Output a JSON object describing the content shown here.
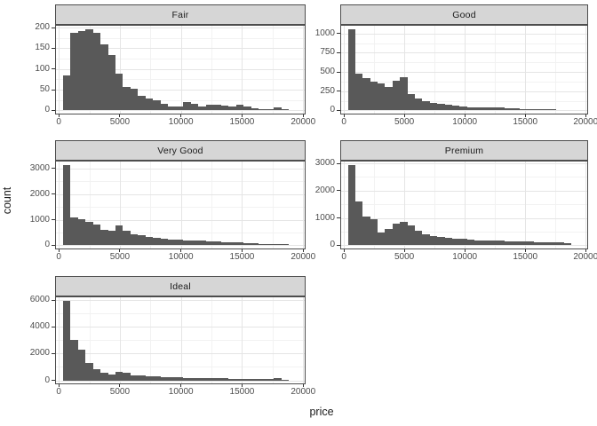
{
  "figure": {
    "background": "#ffffff"
  },
  "titles": {
    "x": "price",
    "y": "count"
  },
  "chart_data": {
    "type": "bar",
    "subtype": "faceted-histogram",
    "title": "",
    "xlabel": "price",
    "ylabel": "count",
    "legend": "none",
    "grid": "on",
    "facet_order": [
      "Fair",
      "Good",
      "Very Good",
      "Premium",
      "Ideal"
    ],
    "x_axis": {
      "ticks": [
        0,
        5000,
        10000,
        15000,
        20000
      ],
      "minor_ticks": [
        2500,
        7500,
        12500,
        17500
      ],
      "domain": [
        -300,
        20200
      ],
      "bin_start": 326,
      "bin_width": 616.6
    },
    "style": {
      "bar_color": "#595959",
      "strip_bg": "#d6d6d6",
      "border_color": "#4d4d4d",
      "grid_major": "#e5e5e5",
      "grid_minor": "#f2f2f2",
      "tick_label_color": "#4d4d4d",
      "title_color": "#1a1a1a"
    },
    "facets": [
      {
        "label": "Fair",
        "y_ticks": [
          0,
          50,
          100,
          150,
          200
        ],
        "values": [
          84,
          187,
          192,
          197,
          187,
          160,
          133,
          89,
          57,
          52,
          36,
          29,
          24,
          16,
          10,
          9,
          20,
          15,
          9,
          13,
          13,
          11,
          9,
          13,
          9,
          5,
          3,
          2,
          8,
          4
        ]
      },
      {
        "label": "Good",
        "y_ticks": [
          0,
          250,
          500,
          750,
          1000
        ],
        "values": [
          1060,
          480,
          420,
          375,
          355,
          300,
          390,
          435,
          210,
          160,
          125,
          100,
          80,
          70,
          60,
          50,
          45,
          40,
          35,
          38,
          35,
          30,
          25,
          22,
          20,
          18,
          15,
          12,
          10,
          8
        ]
      },
      {
        "label": "Very Good",
        "y_ticks": [
          0,
          1000,
          2000,
          3000
        ],
        "values": [
          3150,
          1080,
          1010,
          930,
          820,
          620,
          580,
          780,
          560,
          420,
          380,
          330,
          290,
          250,
          230,
          210,
          200,
          195,
          180,
          165,
          150,
          135,
          120,
          105,
          95,
          80,
          65,
          55,
          45,
          35
        ]
      },
      {
        "label": "Premium",
        "y_ticks": [
          0,
          1000,
          2000,
          3000
        ],
        "values": [
          2950,
          1620,
          1050,
          960,
          470,
          610,
          800,
          860,
          720,
          530,
          420,
          330,
          310,
          280,
          250,
          230,
          210,
          190,
          180,
          170,
          165,
          155,
          150,
          140,
          130,
          120,
          115,
          120,
          100,
          85
        ]
      },
      {
        "label": "Ideal",
        "y_ticks": [
          0,
          2000,
          4000,
          6000
        ],
        "values": [
          5980,
          3000,
          2270,
          1300,
          830,
          560,
          460,
          610,
          590,
          395,
          355,
          315,
          275,
          240,
          225,
          210,
          195,
          185,
          170,
          160,
          150,
          140,
          130,
          120,
          110,
          100,
          90,
          85,
          190,
          60
        ]
      }
    ]
  }
}
